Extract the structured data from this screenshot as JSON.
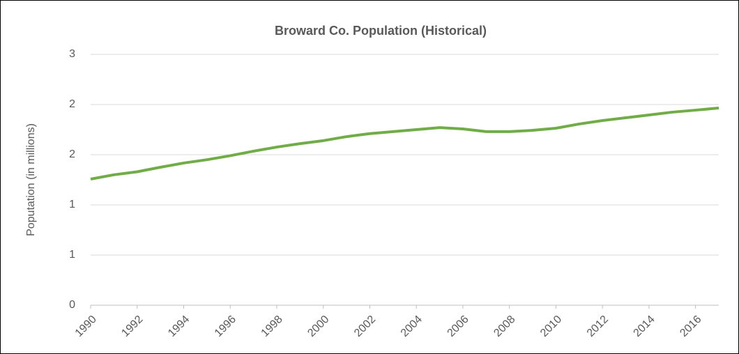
{
  "chart_data": {
    "type": "line",
    "title": "Broward Co. Population (Historical)",
    "y_label": "Poputation (in millions)",
    "x": [
      1990,
      1991,
      1992,
      1993,
      1994,
      1995,
      1996,
      1997,
      1998,
      1999,
      2000,
      2001,
      2002,
      2003,
      2004,
      2005,
      2006,
      2007,
      2008,
      2009,
      2010,
      2011,
      2012,
      2013,
      2014,
      2015,
      2016,
      2017
    ],
    "values": [
      1.257,
      1.3,
      1.33,
      1.375,
      1.417,
      1.45,
      1.49,
      1.535,
      1.576,
      1.61,
      1.64,
      1.68,
      1.71,
      1.73,
      1.75,
      1.77,
      1.757,
      1.73,
      1.73,
      1.743,
      1.764,
      1.806,
      1.84,
      1.868,
      1.896,
      1.924,
      1.944,
      1.965
    ],
    "color": "#70ad47",
    "xlim": [
      1990,
      2017
    ],
    "xticks": [
      1990,
      1992,
      1994,
      1996,
      1998,
      2000,
      2002,
      2004,
      2006,
      2008,
      2010,
      2012,
      2014,
      2016
    ],
    "ylim": [
      0,
      2.5
    ],
    "yticks": [
      0,
      {
        "value": 0.5,
        "label": "1"
      },
      1,
      {
        "value": 1.5,
        "label": "2"
      },
      2,
      {
        "value": 2.5,
        "label": "3"
      }
    ],
    "grid": true
  }
}
